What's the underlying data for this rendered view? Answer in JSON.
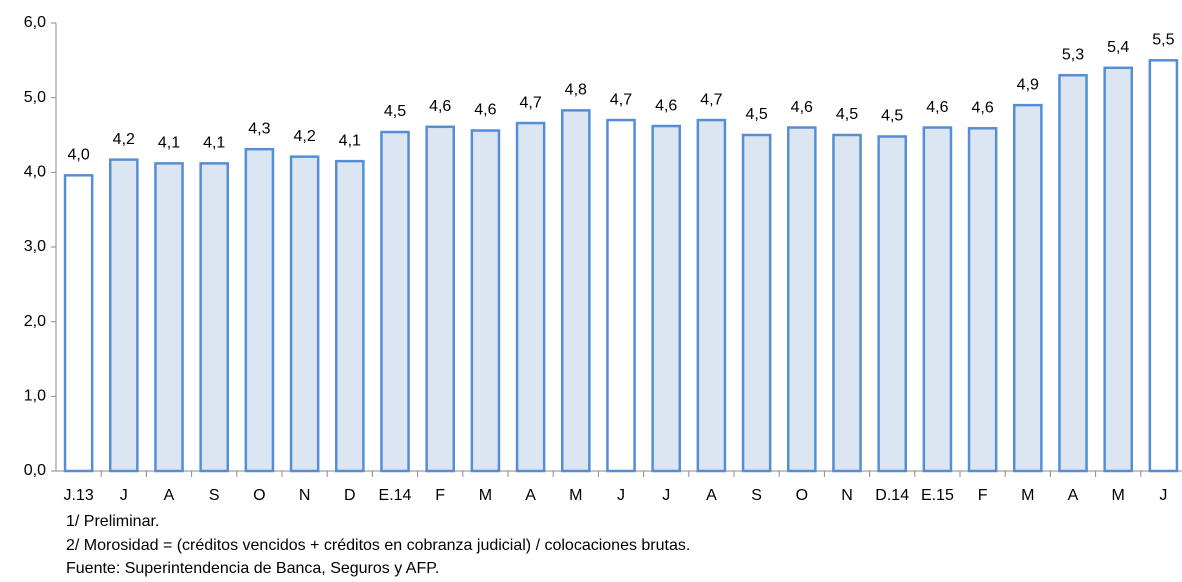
{
  "chart_data": {
    "type": "bar",
    "categories": [
      "J.13",
      "J",
      "A",
      "S",
      "O",
      "N",
      "D",
      "E.14",
      "F",
      "M",
      "A",
      "M",
      "J",
      "J",
      "A",
      "S",
      "O",
      "N",
      "D.14",
      "E.15",
      "F",
      "M",
      "A",
      "M",
      "J"
    ],
    "values": [
      3.96,
      4.17,
      4.12,
      4.12,
      4.31,
      4.21,
      4.15,
      4.54,
      4.61,
      4.56,
      4.66,
      4.83,
      4.7,
      4.62,
      4.7,
      4.5,
      4.6,
      4.5,
      4.48,
      4.6,
      4.59,
      4.9,
      5.3,
      5.4,
      5.5
    ],
    "value_labels": [
      "4,0",
      "4,2",
      "4,1",
      "4,1",
      "4,3",
      "4,2",
      "4,1",
      "4,5",
      "4,6",
      "4,6",
      "4,7",
      "4,8",
      "4,7",
      "4,6",
      "4,7",
      "4,5",
      "4,6",
      "4,5",
      "4,5",
      "4,6",
      "4,6",
      "4,9",
      "5,3",
      "5,4",
      "5,5"
    ],
    "colors": [
      "#ffffff",
      "#dce6f2",
      "#dce6f2",
      "#dce6f2",
      "#dce6f2",
      "#dce6f2",
      "#dce6f2",
      "#dce6f2",
      "#dce6f2",
      "#dce6f2",
      "#dce6f2",
      "#dce6f2",
      "#ffffff",
      "#dce6f2",
      "#dce6f2",
      "#dce6f2",
      "#dce6f2",
      "#dce6f2",
      "#dce6f2",
      "#dce6f2",
      "#dce6f2",
      "#dce6f2",
      "#dce6f2",
      "#dce6f2",
      "#ffffff"
    ],
    "edge_color": "#558ed5",
    "ylim": [
      0,
      6
    ],
    "yticks": [
      {
        "value": 0,
        "label": "0,0"
      },
      {
        "value": 1,
        "label": "1,0"
      },
      {
        "value": 2,
        "label": "2,0"
      },
      {
        "value": 3,
        "label": "3,0"
      },
      {
        "value": 4,
        "label": "4,0"
      },
      {
        "value": 5,
        "label": "5,0"
      },
      {
        "value": 6,
        "label": "6,0"
      }
    ],
    "notes": [
      "1/ Preliminar.",
      "2/ Morosidad = (créditos vencidos + créditos en cobranza judicial) / colocaciones brutas.",
      "Fuente: Superintendencia de Banca, Seguros y AFP."
    ]
  }
}
